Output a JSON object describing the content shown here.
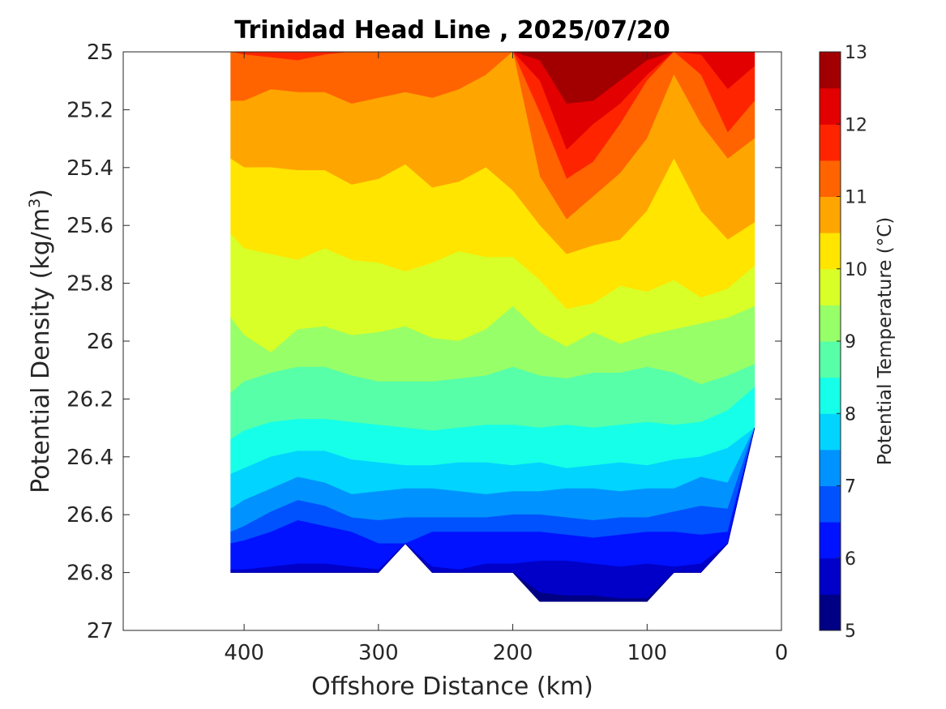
{
  "chart_data": {
    "type": "heatmap",
    "subtype": "filled-contour",
    "title": "Trinidad Head Line , 2025/07/20",
    "xlabel": "Offshore Distance (km)",
    "ylabel_main": "Potential Density (kg/m",
    "ylabel_sup": "3",
    "ylabel_end": ")",
    "colorbar_label": "Potential Temperature (°C)",
    "x_direction": "reversed",
    "xlim": [
      0,
      490
    ],
    "ylim": [
      25,
      27
    ],
    "y_direction": "reversed",
    "x_ticks": [
      400,
      300,
      200,
      100,
      0
    ],
    "y_ticks": [
      25,
      25.2,
      25.4,
      25.6,
      25.8,
      26,
      26.2,
      26.4,
      26.6,
      26.8,
      27
    ],
    "y_tick_labels": [
      "25",
      "25.2",
      "25.4",
      "25.6",
      "25.8",
      "26",
      "26.2",
      "26.4",
      "26.6",
      "26.8",
      "27"
    ],
    "colorbar_ticks": [
      5,
      6,
      7,
      8,
      9,
      10,
      11,
      12,
      13
    ],
    "clim": [
      5,
      13
    ],
    "levels": [
      5,
      5.5,
      6,
      6.5,
      7,
      7.5,
      8,
      8.5,
      9,
      9.5,
      10,
      10.5,
      11,
      11.5,
      12,
      12.5,
      13
    ],
    "level_colors": [
      "#000085",
      "#0000c8",
      "#0012ff",
      "#0052ff",
      "#0093ff",
      "#00d4ff",
      "#16ffe8",
      "#57ffa8",
      "#97ff68",
      "#d8ff27",
      "#ffe500",
      "#ffa500",
      "#ff6400",
      "#ff2400",
      "#e30000",
      "#a20000"
    ],
    "x": [
      20,
      40,
      60,
      80,
      100,
      120,
      140,
      160,
      180,
      200,
      220,
      240,
      260,
      280,
      300,
      320,
      340,
      360,
      380,
      400,
      410
    ],
    "isopycnals": [
      {
        "level": 5.5,
        "y": [
          null,
          null,
          26.87,
          26.89,
          26.89,
          26.89,
          26.88,
          26.88,
          26.87,
          26.86,
          null,
          null,
          null,
          null,
          null,
          null,
          null,
          null,
          null,
          null,
          null
        ]
      },
      {
        "level": 6.0,
        "y": [
          null,
          null,
          26.77,
          26.78,
          26.77,
          26.78,
          26.77,
          26.76,
          26.76,
          26.77,
          26.77,
          26.79,
          26.78,
          null,
          26.79,
          26.78,
          26.77,
          26.77,
          26.78,
          26.79,
          26.79
        ]
      },
      {
        "level": 6.5,
        "y": [
          26.67,
          26.66,
          26.67,
          26.66,
          26.66,
          26.67,
          26.68,
          26.67,
          26.66,
          26.66,
          26.66,
          26.66,
          26.66,
          26.7,
          26.7,
          26.66,
          26.64,
          26.62,
          26.66,
          26.69,
          26.7
        ]
      },
      {
        "level": 7.0,
        "y": [
          26.63,
          26.58,
          26.57,
          26.59,
          26.61,
          26.61,
          26.62,
          26.61,
          26.6,
          26.6,
          26.61,
          26.61,
          26.61,
          26.61,
          26.62,
          26.61,
          26.57,
          26.55,
          26.59,
          26.64,
          26.66
        ]
      },
      {
        "level": 7.5,
        "y": [
          26.5,
          26.49,
          26.47,
          26.51,
          26.51,
          26.52,
          26.51,
          26.51,
          26.52,
          26.52,
          26.53,
          26.52,
          26.51,
          26.51,
          26.52,
          26.53,
          26.49,
          26.47,
          26.51,
          26.55,
          26.58
        ]
      },
      {
        "level": 8.0,
        "y": [
          26.31,
          26.37,
          26.4,
          26.41,
          26.43,
          26.42,
          26.43,
          26.44,
          26.42,
          26.43,
          26.42,
          26.42,
          26.43,
          26.43,
          26.42,
          26.41,
          26.38,
          26.38,
          26.4,
          26.44,
          26.46
        ]
      },
      {
        "level": 8.5,
        "y": [
          26.16,
          26.24,
          26.28,
          26.29,
          26.28,
          26.29,
          26.3,
          26.29,
          26.3,
          26.29,
          26.29,
          26.3,
          26.31,
          26.3,
          26.29,
          26.28,
          26.27,
          26.27,
          26.28,
          26.31,
          26.34
        ]
      },
      {
        "level": 9.0,
        "y": [
          26.08,
          26.12,
          26.15,
          26.11,
          26.09,
          26.11,
          26.11,
          26.13,
          26.12,
          26.09,
          26.12,
          26.13,
          26.14,
          26.14,
          26.14,
          26.12,
          26.09,
          26.09,
          26.11,
          26.14,
          26.18
        ]
      },
      {
        "level": 9.5,
        "y": [
          25.88,
          25.92,
          25.94,
          25.96,
          25.98,
          26.01,
          25.97,
          26.02,
          25.97,
          25.88,
          25.96,
          26.0,
          25.99,
          25.95,
          25.97,
          25.98,
          25.95,
          25.96,
          26.04,
          25.98,
          25.92
        ]
      },
      {
        "level": 10.0,
        "y": [
          25.74,
          25.82,
          25.85,
          25.79,
          25.83,
          25.81,
          25.87,
          25.89,
          25.79,
          25.71,
          25.71,
          25.69,
          25.73,
          25.76,
          25.73,
          25.72,
          25.68,
          25.72,
          25.7,
          25.68,
          25.63
        ]
      },
      {
        "level": 10.5,
        "y": [
          25.59,
          25.65,
          25.55,
          25.37,
          25.55,
          25.65,
          25.67,
          25.7,
          25.6,
          25.48,
          25.4,
          25.45,
          25.47,
          25.39,
          25.44,
          25.46,
          25.41,
          25.41,
          25.4,
          25.4,
          25.37
        ]
      },
      {
        "level": 11.0,
        "y": [
          25.3,
          25.37,
          25.25,
          25.08,
          25.3,
          25.42,
          25.5,
          25.58,
          25.43,
          25.0,
          25.08,
          25.13,
          25.16,
          25.14,
          25.16,
          25.18,
          25.14,
          25.14,
          25.13,
          25.17,
          25.17
        ]
      },
      {
        "level": 11.5,
        "y": [
          25.17,
          25.28,
          25.08,
          25.0,
          25.1,
          25.25,
          25.38,
          25.44,
          25.21,
          null,
          null,
          null,
          null,
          null,
          null,
          null,
          25.01,
          25.03,
          25.02,
          25.01,
          25.0
        ]
      },
      {
        "level": 12.0,
        "y": [
          25.05,
          25.13,
          25.01,
          null,
          25.08,
          25.18,
          25.25,
          25.34,
          25.1,
          null,
          null,
          null,
          null,
          null,
          null,
          null,
          null,
          null,
          null,
          null,
          null
        ]
      },
      {
        "level": 12.5,
        "y": [
          null,
          null,
          null,
          null,
          25.03,
          25.1,
          25.17,
          25.18,
          25.03,
          null,
          null,
          null,
          null,
          null,
          null,
          null,
          null,
          null,
          null,
          null,
          null
        ]
      },
      {
        "level": 13.0,
        "y": [
          null,
          null,
          null,
          null,
          null,
          null,
          25.05,
          25.06,
          null,
          null,
          null,
          null,
          null,
          null,
          null,
          null,
          null,
          null,
          null,
          null,
          null
        ]
      }
    ],
    "data_extent": {
      "x": [
        20,
        40,
        60,
        80,
        100,
        120,
        140,
        160,
        180,
        200,
        220,
        240,
        260,
        280,
        300,
        320,
        340,
        360,
        380,
        400,
        410
      ],
      "y_bottom": [
        26.3,
        26.7,
        26.8,
        26.8,
        26.9,
        26.9,
        26.9,
        26.9,
        26.9,
        26.8,
        26.8,
        26.8,
        26.8,
        26.7,
        26.8,
        26.8,
        26.8,
        26.8,
        26.8,
        26.8,
        26.8
      ]
    }
  }
}
